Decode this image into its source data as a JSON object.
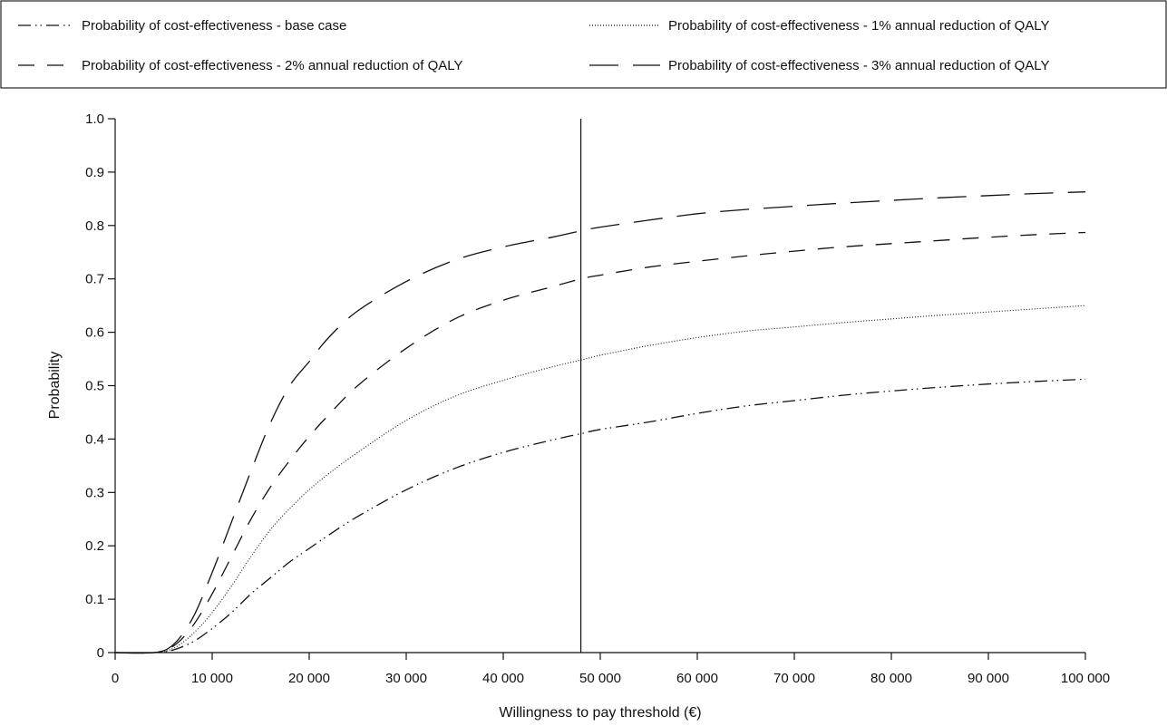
{
  "chart_data": {
    "type": "line",
    "xlabel": "Willingness to pay threshold (€)",
    "ylabel": "Probability",
    "xlim": [
      0,
      100000
    ],
    "ylim": [
      0,
      1.0
    ],
    "x_ticks": [
      0,
      10000,
      20000,
      30000,
      40000,
      50000,
      60000,
      70000,
      80000,
      90000,
      100000
    ],
    "x_tick_labels": [
      "0",
      "10 000",
      "20 000",
      "30 000",
      "40 000",
      "50 000",
      "60 000",
      "70 000",
      "80 000",
      "90 000",
      "100 000"
    ],
    "y_ticks": [
      0,
      0.1,
      0.2,
      0.3,
      0.4,
      0.5,
      0.6,
      0.7,
      0.8,
      0.9,
      1.0
    ],
    "y_tick_labels": [
      "0",
      "0.1",
      "0.2",
      "0.3",
      "0.4",
      "0.5",
      "0.6",
      "0.7",
      "0.8",
      "0.9",
      "1.0"
    ],
    "vertical_line_x": 48000,
    "grid": false,
    "legend_position": "top",
    "x": [
      0,
      4000,
      6000,
      8000,
      10000,
      12000,
      14000,
      16000,
      18000,
      20000,
      22000,
      25000,
      30000,
      35000,
      40000,
      45000,
      48000,
      50000,
      55000,
      60000,
      65000,
      70000,
      75000,
      80000,
      85000,
      90000,
      95000,
      100000
    ],
    "series": [
      {
        "name": "Probability of cost-effectiveness - base case",
        "dash": "dash-dot-dot",
        "values": [
          0,
          0,
          0.005,
          0.02,
          0.045,
          0.075,
          0.11,
          0.14,
          0.17,
          0.195,
          0.22,
          0.255,
          0.305,
          0.345,
          0.375,
          0.398,
          0.41,
          0.418,
          0.432,
          0.448,
          0.462,
          0.472,
          0.482,
          0.49,
          0.497,
          0.503,
          0.508,
          0.512
        ]
      },
      {
        "name": "Probability of cost-effectiveness - 1% annual reduction of QALY",
        "dash": "dotted",
        "values": [
          0,
          0,
          0.008,
          0.035,
          0.075,
          0.125,
          0.18,
          0.23,
          0.27,
          0.305,
          0.335,
          0.375,
          0.435,
          0.48,
          0.51,
          0.535,
          0.548,
          0.557,
          0.575,
          0.59,
          0.602,
          0.61,
          0.618,
          0.625,
          0.632,
          0.638,
          0.644,
          0.65
        ]
      },
      {
        "name": "Probability of cost-effectiveness - 2% annual reduction of QALY",
        "dash": "short-dash",
        "values": [
          0,
          0,
          0.012,
          0.05,
          0.11,
          0.18,
          0.25,
          0.31,
          0.36,
          0.405,
          0.445,
          0.5,
          0.57,
          0.625,
          0.66,
          0.685,
          0.7,
          0.707,
          0.722,
          0.733,
          0.743,
          0.752,
          0.76,
          0.766,
          0.772,
          0.778,
          0.783,
          0.787
        ]
      },
      {
        "name": "Probability of cost-effectiveness - 3% annual reduction of QALY",
        "dash": "long-dash",
        "values": [
          0,
          0,
          0.015,
          0.065,
          0.15,
          0.245,
          0.34,
          0.43,
          0.5,
          0.545,
          0.59,
          0.64,
          0.695,
          0.735,
          0.76,
          0.778,
          0.79,
          0.797,
          0.81,
          0.822,
          0.83,
          0.836,
          0.842,
          0.847,
          0.852,
          0.856,
          0.86,
          0.863
        ]
      }
    ]
  }
}
